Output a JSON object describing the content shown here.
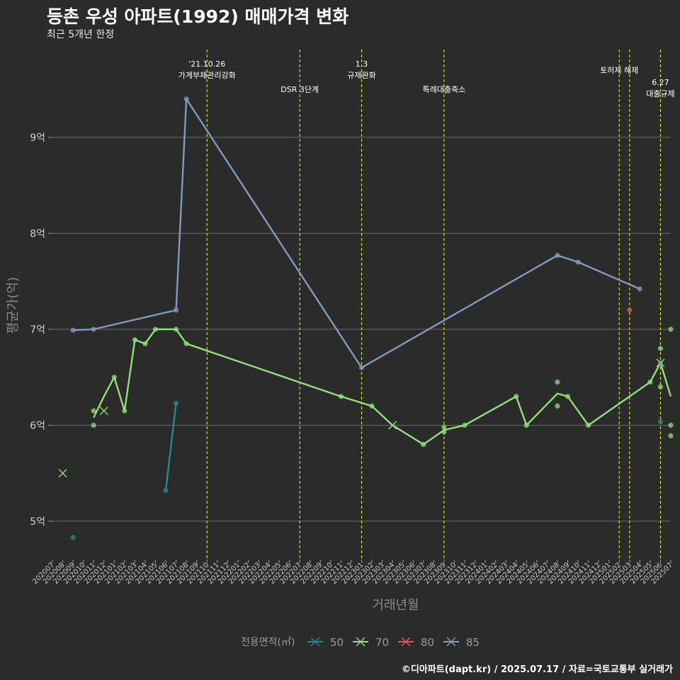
{
  "header": {
    "title": "등촌 우성 아파트(1992) 매매가격 변화",
    "subtitle": "최근 5개년 한정"
  },
  "caption": "©디아파트(dapt.kr) / 2025.07.17 / 자료=국토교통부 실거래가",
  "chart_data": {
    "type": "line",
    "xlabel": "거래년월",
    "ylabel": "평균가(억)",
    "ylim": [
      4.6,
      9.9
    ],
    "yticks": [
      5,
      6,
      7,
      8,
      9
    ],
    "ytick_labels": [
      "5억",
      "6억",
      "7억",
      "8억",
      "9억"
    ],
    "grid": true,
    "legend_position": "bottom",
    "legend_title": "전용면적(㎡)",
    "x": [
      "202007",
      "202008",
      "202009",
      "202010",
      "202011",
      "202012",
      "202101",
      "202102",
      "202103",
      "202104",
      "202105",
      "202106",
      "202107",
      "202108",
      "202109",
      "202110",
      "202111",
      "202112",
      "202201",
      "202202",
      "202203",
      "202204",
      "202205",
      "202206",
      "202207",
      "202208",
      "202209",
      "202210",
      "202211",
      "202212",
      "202301",
      "202302",
      "202303",
      "202304",
      "202305",
      "202306",
      "202307",
      "202308",
      "202309",
      "202310",
      "202311",
      "202312",
      "202401",
      "202402",
      "202403",
      "202404",
      "202405",
      "202406",
      "202407",
      "202408",
      "202409",
      "202410",
      "202411",
      "202412",
      "202501",
      "202502",
      "202503",
      "202504",
      "202505",
      "202506",
      "202507"
    ],
    "series": [
      {
        "name": "50",
        "color": "#2a8a8a",
        "line": [
          [
            "202106",
            5.32
          ],
          [
            "202107",
            6.23
          ]
        ],
        "points": [
          [
            "202009",
            4.83
          ],
          [
            "202106",
            5.32
          ],
          [
            "202107",
            6.23
          ],
          [
            "202506",
            6.04
          ]
        ],
        "crosses": []
      },
      {
        "name": "70",
        "color": "#8fe07a",
        "line": [
          [
            "202011",
            6.08
          ],
          [
            "202012",
            6.3
          ],
          [
            "202101",
            6.5
          ],
          [
            "202102",
            6.15
          ],
          [
            "202103",
            6.89
          ],
          [
            "202104",
            6.85
          ],
          [
            "202105",
            7.0
          ],
          [
            "202107",
            7.0
          ],
          [
            "202108",
            6.85
          ],
          [
            "202211",
            6.3
          ],
          [
            "202302",
            6.2
          ],
          [
            "202304",
            6.0
          ],
          [
            "202307",
            5.8
          ],
          [
            "202309",
            5.95
          ],
          [
            "202311",
            6.0
          ],
          [
            "202404",
            6.3
          ],
          [
            "202405",
            6.0
          ],
          [
            "202408",
            6.33
          ],
          [
            "202409",
            6.3
          ],
          [
            "202411",
            6.0
          ],
          [
            "202505",
            6.45
          ],
          [
            "202506",
            6.65
          ],
          [
            "202507",
            6.3
          ]
        ],
        "points": [
          [
            "202011",
            6.15
          ],
          [
            "202011",
            6.0
          ],
          [
            "202101",
            6.5
          ],
          [
            "202102",
            6.15
          ],
          [
            "202103",
            6.89
          ],
          [
            "202104",
            6.85
          ],
          [
            "202105",
            7.0
          ],
          [
            "202107",
            7.0
          ],
          [
            "202108",
            6.85
          ],
          [
            "202211",
            6.3
          ],
          [
            "202302",
            6.2
          ],
          [
            "202307",
            5.8
          ],
          [
            "202309",
            5.98
          ],
          [
            "202309",
            5.93
          ],
          [
            "202311",
            6.0
          ],
          [
            "202404",
            6.3
          ],
          [
            "202405",
            6.0
          ],
          [
            "202408",
            6.45
          ],
          [
            "202408",
            6.2
          ],
          [
            "202409",
            6.3
          ],
          [
            "202411",
            6.0
          ],
          [
            "202505",
            6.45
          ],
          [
            "202506",
            6.8
          ],
          [
            "202506",
            6.4
          ],
          [
            "202507",
            7.0
          ],
          [
            "202507",
            6.0
          ],
          [
            "202507",
            5.89
          ]
        ],
        "crosses": [
          [
            "202008",
            5.5
          ],
          [
            "202012",
            6.15
          ],
          [
            "202304",
            6.0
          ],
          [
            "202506",
            6.65
          ]
        ]
      },
      {
        "name": "80",
        "color": "#e05c4a",
        "line": [],
        "points": [
          [
            "202503",
            7.2
          ]
        ],
        "crosses": []
      },
      {
        "name": "85",
        "color": "#7f9bc0",
        "line": [
          [
            "202009",
            6.99
          ],
          [
            "202011",
            7.0
          ],
          [
            "202107",
            7.2
          ],
          [
            "202108",
            9.4
          ],
          [
            "202301",
            6.6
          ],
          [
            "202408",
            7.77
          ],
          [
            "202410",
            7.7
          ],
          [
            "202504",
            7.42
          ]
        ],
        "points": [
          [
            "202009",
            6.99
          ],
          [
            "202011",
            7.0
          ],
          [
            "202107",
            7.2
          ],
          [
            "202108",
            9.4
          ],
          [
            "202301",
            6.6
          ],
          [
            "202408",
            7.77
          ],
          [
            "202410",
            7.7
          ],
          [
            "202504",
            7.42
          ],
          [
            "202506",
            6.65
          ]
        ],
        "crosses": []
      }
    ],
    "vlines": [
      {
        "x": "202110",
        "label": [
          "'21.10.26",
          "가계부채관리강화"
        ],
        "level": "top"
      },
      {
        "x": "202207",
        "label": [
          "DSR 3단계"
        ],
        "level": "mid"
      },
      {
        "x": "202301",
        "label": [
          "1.3",
          "규제완화"
        ],
        "level": "top"
      },
      {
        "x": "202309",
        "label": [
          "특례대출축소"
        ],
        "level": "mid"
      },
      {
        "x": "202502",
        "label": [
          "토허제 해제"
        ],
        "level": "upper"
      },
      {
        "x": "202503",
        "label": [],
        "level": "upper"
      },
      {
        "x": "202506",
        "label": [
          "6.27",
          "대출규제"
        ],
        "level": "low"
      }
    ]
  }
}
